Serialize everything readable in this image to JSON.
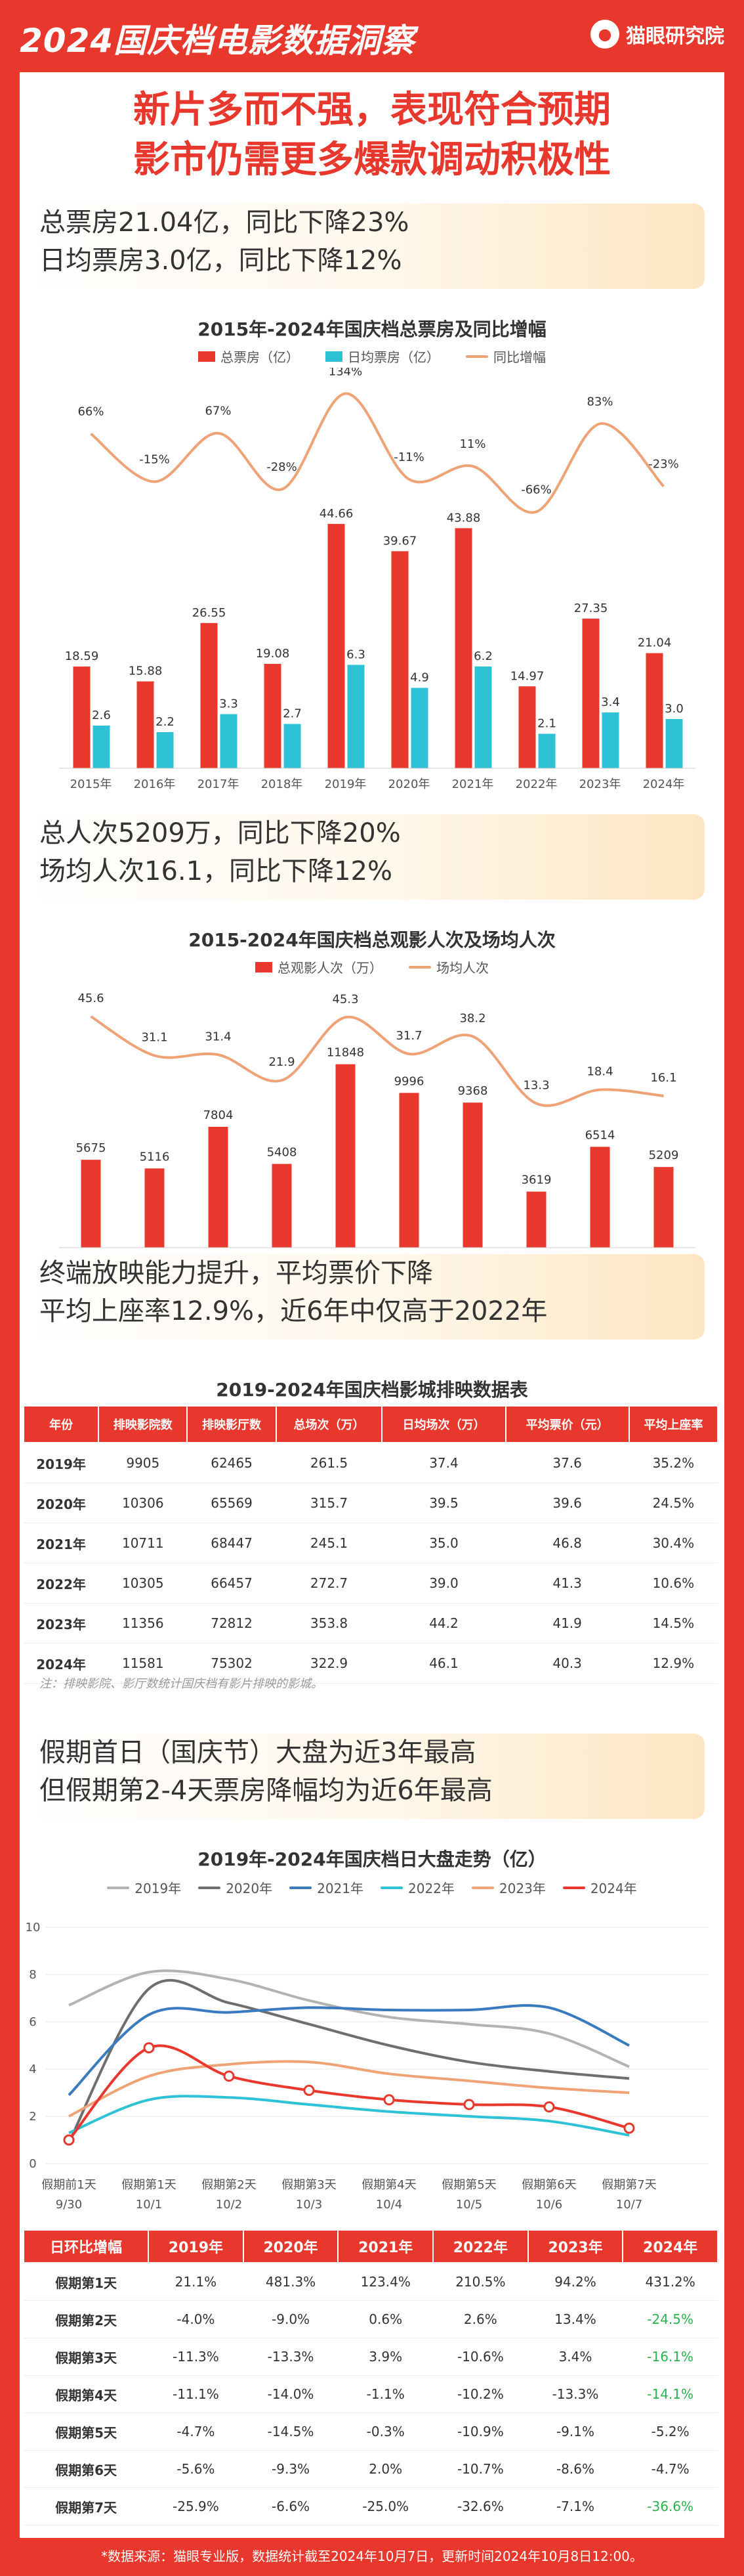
{
  "header": {
    "title": "2024国庆档电影数据洞察",
    "brand": "猫眼研究院"
  },
  "headline": {
    "line1": "新片多而不强，表现符合预期",
    "line2": "影市仍需更多爆款调动积极性"
  },
  "section1": {
    "line1": "总票房21.04亿，同比下降23%",
    "line2": "日均票房3.0亿，同比下降12%"
  },
  "section2": {
    "line1": "总人次5209万，同比下降20%",
    "line2": "场均人次16.1，同比下降12%"
  },
  "section3": {
    "line1": "终端放映能力提升，平均票价下降",
    "line2": "平均上座率12.9%，近6年中仅高于2022年"
  },
  "section4": {
    "line1": "假期首日（国庆节）大盘为近3年最高",
    "line2": "但假期第2-4天票房降幅均为近6年最高"
  },
  "colors": {
    "red": "#e8372c",
    "cyan": "#2ec2d6",
    "orange": "#f0a277",
    "green": "#2bb24c"
  },
  "chart_data": [
    {
      "type": "bar",
      "title": "2015年-2024年国庆档总票房及同比增幅",
      "categories": [
        "2015年",
        "2016年",
        "2017年",
        "2018年",
        "2019年",
        "2020年",
        "2021年",
        "2022年",
        "2023年",
        "2024年"
      ],
      "series": [
        {
          "name": "总票房（亿）",
          "values": [
            18.59,
            15.88,
            26.55,
            19.08,
            44.66,
            39.67,
            43.88,
            14.97,
            27.35,
            21.04
          ],
          "labels": [
            "18.59",
            "15.88",
            "26.55",
            "19.08",
            "44.66",
            "39.67",
            "43.88",
            "14.97",
            "27.35",
            "21.04"
          ]
        },
        {
          "name": "日均票房（亿）",
          "values": [
            2.6,
            2.2,
            3.3,
            2.7,
            6.3,
            4.9,
            6.2,
            2.1,
            3.4,
            3.0
          ],
          "labels": [
            "2.6",
            "2.2",
            "3.3",
            "2.7",
            "6.3",
            "4.9",
            "6.2",
            "2.1",
            "3.4",
            "3.0"
          ]
        },
        {
          "name": "同比增幅",
          "type": "line",
          "values": [
            66,
            -15,
            67,
            -28,
            134,
            -11,
            11,
            -66,
            83,
            -23
          ],
          "labels": [
            "66%",
            "-15%",
            "67%",
            "-28%",
            "134%",
            "-11%",
            "11%",
            "-66%",
            "83%",
            "-23%"
          ]
        }
      ]
    },
    {
      "type": "bar",
      "title": "2015-2024年国庆档总观影人次及场均人次",
      "categories": [
        "2015年",
        "2016年",
        "2017年",
        "2018年",
        "2019年",
        "2020年",
        "2021年",
        "2022年",
        "2023年",
        "2024年"
      ],
      "series": [
        {
          "name": "总观影人次（万）",
          "values": [
            5675,
            5116,
            7804,
            5408,
            11848,
            9996,
            9368,
            3619,
            6514,
            5209
          ],
          "labels": [
            "5675",
            "5116",
            "7804",
            "5408",
            "11848",
            "9996",
            "9368",
            "3619",
            "6514",
            "5209"
          ]
        },
        {
          "name": "场均人次",
          "type": "line",
          "values": [
            45.6,
            31.1,
            31.4,
            21.9,
            45.3,
            31.7,
            38.2,
            13.3,
            18.4,
            16.1
          ],
          "labels": [
            "45.6",
            "31.1",
            "31.4",
            "21.9",
            "45.3",
            "31.7",
            "38.2",
            "13.3",
            "18.4",
            "16.1"
          ]
        }
      ]
    },
    {
      "type": "table",
      "title": "2019-2024年国庆档影城排映数据表",
      "columns": [
        "年份",
        "排映影院数",
        "排映影厅数",
        "总场次（万）",
        "日均场次（万）",
        "平均票价（元）",
        "平均上座率"
      ],
      "rows": [
        [
          "2019年",
          "9905",
          "62465",
          "261.5",
          "37.4",
          "37.6",
          "35.2%"
        ],
        [
          "2020年",
          "10306",
          "65569",
          "315.7",
          "39.5",
          "39.6",
          "24.5%"
        ],
        [
          "2021年",
          "10711",
          "68447",
          "245.1",
          "35.0",
          "46.8",
          "30.4%"
        ],
        [
          "2022年",
          "10305",
          "66457",
          "272.7",
          "39.0",
          "41.3",
          "10.6%"
        ],
        [
          "2023年",
          "11356",
          "72812",
          "353.8",
          "44.2",
          "41.9",
          "14.5%"
        ],
        [
          "2024年",
          "11581",
          "75302",
          "322.9",
          "46.1",
          "40.3",
          "12.9%"
        ]
      ],
      "note": "注：排映影院、影厅数统计国庆档有影片排映的影城。"
    },
    {
      "type": "line",
      "title": "2019年-2024年国庆档日大盘走势（亿）",
      "x": [
        "假期前1天",
        "假期第1天",
        "假期第2天",
        "假期第3天",
        "假期第4天",
        "假期第5天",
        "假期第6天",
        "假期第7天"
      ],
      "x_sub": [
        "9/30",
        "10/1",
        "10/2",
        "10/3",
        "10/4",
        "10/5",
        "10/6",
        "10/7"
      ],
      "ylim": [
        0,
        10
      ],
      "yticks": [
        "0",
        "2",
        "4",
        "6",
        "8",
        "10"
      ],
      "series": [
        {
          "name": "2019年",
          "color": "#b3b3b3",
          "values": [
            6.7,
            8.1,
            7.8,
            6.9,
            6.2,
            5.9,
            5.5,
            4.1
          ]
        },
        {
          "name": "2020年",
          "color": "#6e6e6e",
          "values": [
            0.9,
            7.4,
            6.8,
            5.9,
            5.0,
            4.3,
            3.9,
            3.6
          ]
        },
        {
          "name": "2021年",
          "color": "#3a7abf",
          "values": [
            2.9,
            6.3,
            6.4,
            6.6,
            6.5,
            6.5,
            6.6,
            5.0
          ]
        },
        {
          "name": "2022年",
          "color": "#2ec2d6",
          "values": [
            1.3,
            2.7,
            2.8,
            2.5,
            2.2,
            2.0,
            1.8,
            1.2
          ]
        },
        {
          "name": "2023年",
          "color": "#f0a277",
          "values": [
            2.0,
            3.7,
            4.2,
            4.3,
            3.8,
            3.5,
            3.2,
            3.0
          ]
        },
        {
          "name": "2024年",
          "color": "#e8372c",
          "values": [
            1.0,
            4.9,
            3.7,
            3.1,
            2.7,
            2.5,
            2.4,
            1.5
          ],
          "markers": true
        }
      ]
    },
    {
      "type": "table",
      "columns": [
        "日环比增幅",
        "2019年",
        "2020年",
        "2021年",
        "2022年",
        "2023年",
        "2024年"
      ],
      "rows": [
        [
          "假期第1天",
          "21.1%",
          "481.3%",
          "123.4%",
          "210.5%",
          "94.2%",
          "431.2%"
        ],
        [
          "假期第2天",
          "-4.0%",
          "-9.0%",
          "0.6%",
          "2.6%",
          "13.4%",
          "-24.5%"
        ],
        [
          "假期第3天",
          "-11.3%",
          "-13.3%",
          "3.9%",
          "-10.6%",
          "3.4%",
          "-16.1%"
        ],
        [
          "假期第4天",
          "-11.1%",
          "-14.0%",
          "-1.1%",
          "-10.2%",
          "-13.3%",
          "-14.1%"
        ],
        [
          "假期第5天",
          "-4.7%",
          "-14.5%",
          "-0.3%",
          "-10.9%",
          "-9.1%",
          "-5.2%"
        ],
        [
          "假期第6天",
          "-5.6%",
          "-9.3%",
          "2.0%",
          "-10.7%",
          "-8.6%",
          "-4.7%"
        ],
        [
          "假期第7天",
          "-25.9%",
          "-6.6%",
          "-25.0%",
          "-32.6%",
          "-7.1%",
          "-36.6%"
        ]
      ],
      "green_cells": [
        [
          1,
          6
        ],
        [
          2,
          6
        ],
        [
          3,
          6
        ],
        [
          6,
          6
        ]
      ]
    }
  ],
  "footer": "*数据来源：猫眼专业版，数据统计截至2024年10月7日，更新时间2024年10月8日12:00。"
}
